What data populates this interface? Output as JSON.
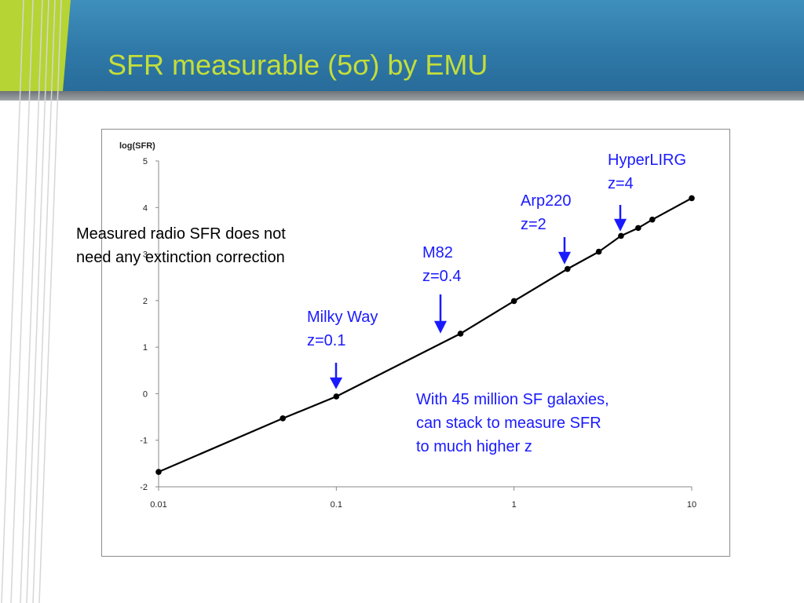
{
  "slide": {
    "title": "SFR measurable (5σ) by EMU"
  },
  "annotations": {
    "extinction_line1": "Measured radio SFR does not",
    "extinction_line2": "need any extinction correction",
    "milky_way_name": "Milky Way",
    "milky_way_z": "z=0.1",
    "m82_name": "M82",
    "m82_z": "z=0.4",
    "arp220_name": "Arp220",
    "arp220_z": "z=2",
    "hyperlirg_name": "HyperLIRG",
    "hyperlirg_z": "z=4",
    "stack_line1": "With 45 million SF galaxies,",
    "stack_line2": "can stack to measure SFR",
    "stack_line3": "to much higher z"
  },
  "colors": {
    "title": "#c4de3a",
    "header_blue": "#2f79a8",
    "annotation_blue": "#1a1aff",
    "series": "#000000"
  },
  "chart_data": {
    "type": "line",
    "title": "",
    "xlabel": "",
    "ylabel": "log(SFR)",
    "x_scale": "log",
    "xlim": [
      0.01,
      10
    ],
    "ylim": [
      -2,
      5
    ],
    "x_ticks": [
      0.01,
      0.1,
      1,
      10
    ],
    "x_tick_labels": [
      "0.01",
      "0.1",
      "1",
      "10"
    ],
    "y_ticks": [
      -2,
      -1,
      0,
      1,
      2,
      3,
      4,
      5
    ],
    "y_tick_labels": [
      "-2",
      "-1",
      "0",
      "1",
      "2",
      "3",
      "4",
      "5"
    ],
    "grid": false,
    "series": [
      {
        "x": [
          0.01,
          0.05,
          0.1,
          0.5,
          1,
          2,
          3,
          4,
          5,
          6,
          10
        ],
        "y": [
          -1.68,
          -0.53,
          -0.06,
          1.29,
          1.99,
          2.68,
          3.05,
          3.39,
          3.56,
          3.74,
          4.2
        ]
      }
    ],
    "annotation_arrows_at_x": [
      0.1,
      0.4,
      2,
      4
    ]
  }
}
